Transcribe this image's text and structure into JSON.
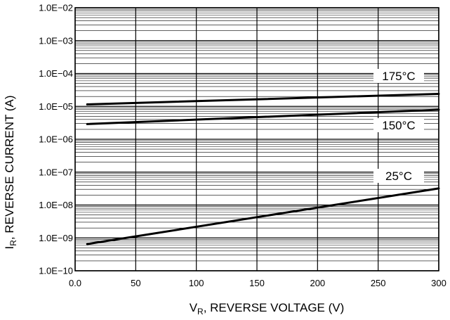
{
  "chart_data": {
    "type": "line",
    "xlabel": {
      "main": "V",
      "sub": "R",
      "rest": ", REVERSE VOLTAGE (V)"
    },
    "ylabel": {
      "main": "I",
      "sub": "R",
      "rest": ", REVERSE CURRENT (A)"
    },
    "xlim": [
      0,
      300
    ],
    "ylim": [
      1e-10,
      0.01
    ],
    "yscale": "log",
    "grid": true,
    "x_ticks": [
      {
        "value": 0,
        "label": "0.0"
      },
      {
        "value": 50,
        "label": "50"
      },
      {
        "value": 100,
        "label": "100"
      },
      {
        "value": 150,
        "label": "150"
      },
      {
        "value": 200,
        "label": "200"
      },
      {
        "value": 250,
        "label": "250"
      },
      {
        "value": 300,
        "label": "300"
      }
    ],
    "y_ticks": [
      {
        "value": 0.01,
        "label": "1.0E−02"
      },
      {
        "value": 0.001,
        "label": "1.0E−03"
      },
      {
        "value": 0.0001,
        "label": "1.0E−04"
      },
      {
        "value": 1e-05,
        "label": "1.0E−05"
      },
      {
        "value": 1e-06,
        "label": "1.0E−06"
      },
      {
        "value": 1e-07,
        "label": "1.0E−07"
      },
      {
        "value": 1e-08,
        "label": "1.0E−08"
      },
      {
        "value": 1e-09,
        "label": "1.0E−09"
      },
      {
        "value": 1e-10,
        "label": "1.0E−10"
      }
    ],
    "series": [
      {
        "name": "175°C",
        "x": [
          10,
          300
        ],
        "y": [
          1.15e-05,
          2.4e-05
        ]
      },
      {
        "name": "150°C",
        "x": [
          10,
          300
        ],
        "y": [
          2.9e-06,
          7.9e-06
        ]
      },
      {
        "name": "25°C",
        "x": [
          10,
          300
        ],
        "y": [
          6.5e-10,
          3.2e-08
        ]
      }
    ]
  }
}
